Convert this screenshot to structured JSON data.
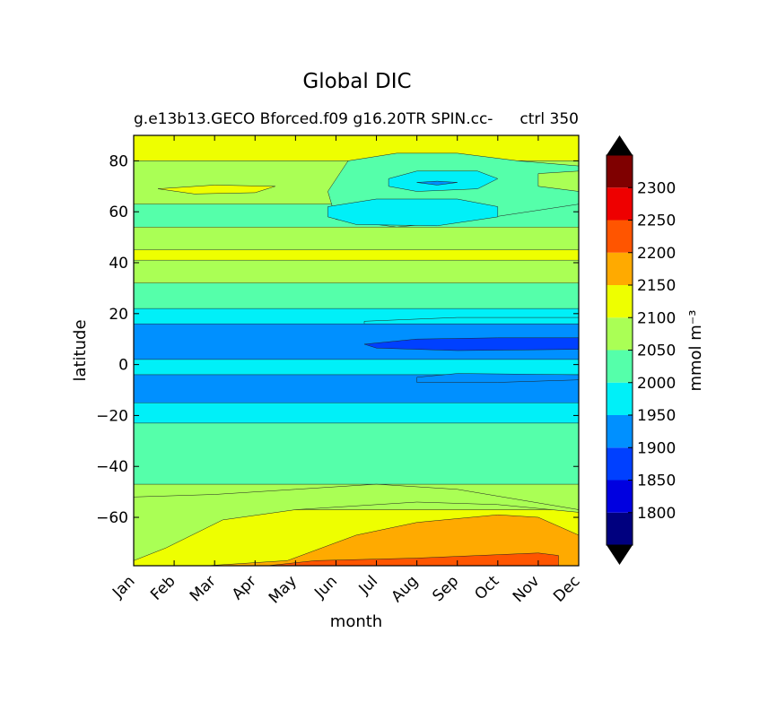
{
  "chart_data": {
    "type": "heatmap",
    "title": "Global DIC",
    "subtitle_left": "g.e13b13.GECO Bforced.f09 g16.20TR SPIN.cc-",
    "subtitle_right": "ctrl 350",
    "xlabel": "month",
    "ylabel": "latitude",
    "x_tick_labels": [
      "Jan",
      "Feb",
      "Mar",
      "Apr",
      "May",
      "Jun",
      "Jul",
      "Aug",
      "Sep",
      "Oct",
      "Nov",
      "Dec"
    ],
    "y_ticks": [
      80,
      60,
      40,
      20,
      0,
      -20,
      -40,
      -60
    ],
    "y_tick_labels": [
      "80",
      "60",
      "40",
      "20",
      "0",
      "−20",
      "−40",
      "−60"
    ],
    "xlim": [
      1,
      12
    ],
    "ylim": [
      -79,
      90
    ],
    "colorbar": {
      "label": "mmol m⁻³",
      "levels": [
        1750,
        1800,
        1850,
        1900,
        1950,
        2000,
        2050,
        2100,
        2150,
        2200,
        2250,
        2300,
        2350
      ],
      "tick_values": [
        1800,
        1850,
        1900,
        1950,
        2000,
        2050,
        2100,
        2150,
        2200,
        2250,
        2300
      ],
      "tick_labels": [
        "1800",
        "1850",
        "1900",
        "1950",
        "2000",
        "2050",
        "2100",
        "2150",
        "2200",
        "2250",
        "2300"
      ],
      "colors": [
        "#00007f",
        "#0000e0",
        "#0040ff",
        "#0090ff",
        "#00f0f8",
        "#55ffaa",
        "#aaff55",
        "#eeff00",
        "#ffaa00",
        "#ff5500",
        "#ee0000",
        "#7f0000"
      ],
      "extend_low_color": "#000000",
      "extend_high_color": "#000000"
    },
    "bands": [
      {
        "lat_top": 90,
        "lat_bottom": 80,
        "value": 2125
      },
      {
        "lat_top": 80,
        "lat_bottom": 63,
        "value": 2075
      },
      {
        "lat_top": 63,
        "lat_bottom": 54,
        "value": 2025
      },
      {
        "lat_top": 54,
        "lat_bottom": 45,
        "value": 2075
      },
      {
        "lat_top": 45,
        "lat_bottom": 41,
        "value": 2125
      },
      {
        "lat_top": 41,
        "lat_bottom": 32,
        "value": 2075
      },
      {
        "lat_top": 32,
        "lat_bottom": 22,
        "value": 2025
      },
      {
        "lat_top": 22,
        "lat_bottom": 16,
        "value": 1975
      },
      {
        "lat_top": 16,
        "lat_bottom": 2,
        "value": 1925
      },
      {
        "lat_top": 2,
        "lat_bottom": -4,
        "value": 1975
      },
      {
        "lat_top": -4,
        "lat_bottom": -15,
        "value": 1925
      },
      {
        "lat_top": -15,
        "lat_bottom": -23,
        "value": 1975
      },
      {
        "lat_top": -23,
        "lat_bottom": -47,
        "value": 2025
      },
      {
        "lat_top": -47,
        "lat_bottom": -57,
        "value": 2075
      },
      {
        "lat_top": -57,
        "lat_bottom": -79,
        "value": 2125
      }
    ],
    "patches": [
      {
        "value": 2025,
        "points": [
          [
            6.3,
            80
          ],
          [
            7.5,
            83
          ],
          [
            9,
            83
          ],
          [
            10.5,
            80
          ],
          [
            12,
            78
          ],
          [
            12,
            63
          ],
          [
            9.5,
            57
          ],
          [
            7.5,
            54
          ],
          [
            6,
            57
          ],
          [
            5.8,
            68
          ],
          [
            6.3,
            80
          ]
        ]
      },
      {
        "value": 1975,
        "points": [
          [
            7.3,
            73
          ],
          [
            8,
            76
          ],
          [
            9.5,
            76
          ],
          [
            10,
            73
          ],
          [
            9.5,
            69
          ],
          [
            8,
            68
          ],
          [
            7.3,
            70
          ],
          [
            7.3,
            73
          ]
        ]
      },
      {
        "value": 1975,
        "points": [
          [
            5.8,
            62
          ],
          [
            7,
            65
          ],
          [
            9,
            65
          ],
          [
            10,
            62
          ],
          [
            10,
            58
          ],
          [
            8.5,
            54.5
          ],
          [
            6.5,
            55
          ],
          [
            5.8,
            58
          ],
          [
            5.8,
            62
          ]
        ]
      },
      {
        "value": 1925,
        "points": [
          [
            8,
            71.5
          ],
          [
            8.5,
            72
          ],
          [
            9,
            71.5
          ],
          [
            8.5,
            70.5
          ],
          [
            8,
            71.5
          ]
        ]
      },
      {
        "value": 2125,
        "points": [
          [
            1.6,
            69
          ],
          [
            3,
            70.5
          ],
          [
            4.5,
            70
          ],
          [
            4,
            67.5
          ],
          [
            2.5,
            67
          ],
          [
            1.6,
            69
          ]
        ]
      },
      {
        "value": 2075,
        "points": [
          [
            11,
            75
          ],
          [
            12,
            76
          ],
          [
            12,
            68
          ],
          [
            11,
            70
          ],
          [
            11,
            75
          ]
        ]
      },
      {
        "value": 1975,
        "points": [
          [
            6.7,
            17
          ],
          [
            9,
            18.5
          ],
          [
            12,
            18.5
          ],
          [
            12,
            16
          ],
          [
            6.7,
            16
          ],
          [
            6.7,
            17
          ]
        ]
      },
      {
        "value": 1875,
        "points": [
          [
            6.7,
            8
          ],
          [
            8,
            10
          ],
          [
            10,
            10.5
          ],
          [
            12,
            10.5
          ],
          [
            12,
            6
          ],
          [
            9,
            5.5
          ],
          [
            7,
            6.5
          ],
          [
            6.7,
            8
          ]
        ]
      },
      {
        "value": 1925,
        "points": [
          [
            8,
            -7
          ],
          [
            10,
            -7
          ],
          [
            12,
            -6
          ],
          [
            12,
            -4
          ],
          [
            9,
            -3.5
          ],
          [
            8,
            -5
          ],
          [
            8,
            -7
          ]
        ]
      },
      {
        "value": 2075,
        "points": [
          [
            1,
            -77
          ],
          [
            1.8,
            -72
          ],
          [
            3.2,
            -61
          ],
          [
            5,
            -57
          ],
          [
            8,
            -54
          ],
          [
            10,
            -55
          ],
          [
            12,
            -58
          ],
          [
            12,
            -57
          ],
          [
            9,
            -49
          ],
          [
            7,
            -47
          ],
          [
            5,
            -49
          ],
          [
            3,
            -51
          ],
          [
            1,
            -52
          ],
          [
            1,
            -77
          ]
        ]
      },
      {
        "value": 2175,
        "points": [
          [
            2.8,
            -79
          ],
          [
            4.8,
            -77
          ],
          [
            6.5,
            -67
          ],
          [
            8,
            -62
          ],
          [
            10,
            -59
          ],
          [
            11,
            -60
          ],
          [
            12,
            -67
          ],
          [
            12,
            -79
          ],
          [
            2.8,
            -79
          ]
        ]
      },
      {
        "value": 2225,
        "points": [
          [
            4.3,
            -79
          ],
          [
            5.5,
            -77
          ],
          [
            8,
            -76
          ],
          [
            11,
            -74
          ],
          [
            11.5,
            -75
          ],
          [
            11.5,
            -79
          ],
          [
            4.3,
            -79
          ]
        ]
      }
    ]
  }
}
